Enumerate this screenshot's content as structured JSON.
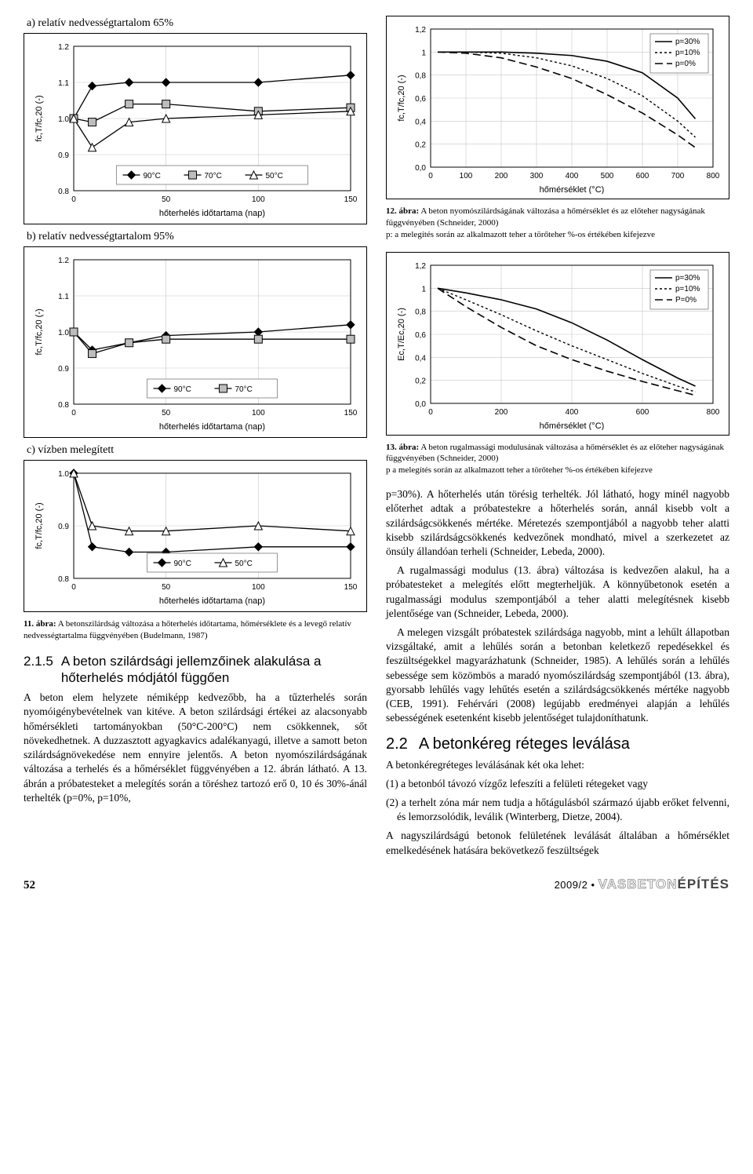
{
  "left": {
    "chart_a": {
      "title": "a) relatív nedvességtartalom 65%",
      "type": "line-marker",
      "x_label": "hőterhelés időtartama (nap)",
      "y_label": "fc,T/fc,20 (-)",
      "xlim": [
        0,
        150
      ],
      "xticks": [
        0,
        50,
        100,
        150
      ],
      "ylim": [
        0.8,
        1.2
      ],
      "yticks": [
        0.8,
        0.9,
        1.0,
        1.1,
        1.2
      ],
      "grid": true,
      "series": [
        {
          "name": "90°C",
          "marker": "diamond",
          "fill": "#000000",
          "x": [
            0,
            10,
            30,
            50,
            100,
            150
          ],
          "y": [
            1.0,
            1.09,
            1.1,
            1.1,
            1.1,
            1.12
          ]
        },
        {
          "name": "70°C",
          "marker": "square",
          "fill": "#bdbdbd",
          "x": [
            0,
            10,
            30,
            50,
            100,
            150
          ],
          "y": [
            1.0,
            0.99,
            1.04,
            1.04,
            1.02,
            1.03
          ]
        },
        {
          "name": "50°C",
          "marker": "triangle",
          "fill": "#ffffff",
          "x": [
            0,
            10,
            30,
            50,
            100,
            150
          ],
          "y": [
            1.0,
            0.92,
            0.99,
            1.0,
            1.01,
            1.02
          ]
        }
      ],
      "line_color": "#000000"
    },
    "chart_b": {
      "title": "b) relatív nedvességtartalom 95%",
      "type": "line-marker",
      "x_label": "hőterhelés időtartama (nap)",
      "y_label": "fc,T/fc,20 (-)",
      "xlim": [
        0,
        150
      ],
      "xticks": [
        0,
        50,
        100,
        150
      ],
      "ylim": [
        0.8,
        1.2
      ],
      "yticks": [
        0.8,
        0.9,
        1.0,
        1.1,
        1.2
      ],
      "grid": true,
      "series": [
        {
          "name": "90°C",
          "marker": "diamond",
          "fill": "#000000",
          "x": [
            0,
            10,
            30,
            50,
            100,
            150
          ],
          "y": [
            1.0,
            0.95,
            0.97,
            0.99,
            1.0,
            1.02
          ]
        },
        {
          "name": "70°C",
          "marker": "square",
          "fill": "#bdbdbd",
          "x": [
            0,
            10,
            30,
            50,
            100,
            150
          ],
          "y": [
            1.0,
            0.94,
            0.97,
            0.98,
            0.98,
            0.98
          ]
        }
      ],
      "line_color": "#000000"
    },
    "chart_c": {
      "title": "c) vízben melegített",
      "type": "line-marker",
      "x_label": "hőterhelés időtartama (nap)",
      "y_label": "fc,T/fc,20 (-)",
      "xlim": [
        0,
        150
      ],
      "xticks": [
        0,
        50,
        100,
        150
      ],
      "ylim": [
        0.8,
        1.0
      ],
      "yticks": [
        0.8,
        0.9,
        1.0
      ],
      "grid": true,
      "series": [
        {
          "name": "90°C",
          "marker": "diamond",
          "fill": "#000000",
          "x": [
            0,
            10,
            30,
            50,
            100,
            150
          ],
          "y": [
            1.0,
            0.86,
            0.85,
            0.85,
            0.86,
            0.86
          ]
        },
        {
          "name": "50°C",
          "marker": "triangle",
          "fill": "#ffffff",
          "x": [
            0,
            10,
            30,
            50,
            100,
            150
          ],
          "y": [
            1.0,
            0.9,
            0.89,
            0.89,
            0.9,
            0.89
          ]
        }
      ],
      "line_color": "#000000"
    },
    "caption11": {
      "lead": "11. ábra:",
      "text": "A betonszilárdság változása a hőterhelés időtartama, hőmérséklete és a levegő relatív nedvességtartalma függvényében (Budelmann, 1987)"
    },
    "section215": {
      "num": "2.1.5",
      "title": "A beton szilárdsági jellemzőinek alakulása a hőterhelés módjától függően",
      "para": "A beton elem helyzete némiképp kedvezőbb, ha a tűzterhelés során nyomóigénybevételnek van kitéve. A beton szilárdsági értékei az alacsonyabb hőmérsékleti tartományokban (50°C-200°C) nem csökkennek, sőt növekedhetnek. A duzzasztott agyagkavics adalékanyagú, illetve a samott beton szilárdságnövekedése nem ennyire jelentős. A beton nyomószilárdságának változása a terhelés és a hőmérséklet függvényében a 12. ábrán látható. A 13. ábrán a próbatesteket a melegítés során a töréshez tartozó erő 0, 10 és 30%-ánál terhelték (p=0%, p=10%,"
    }
  },
  "right": {
    "chart12": {
      "type": "line",
      "x_label": "hőmérséklet (°C)",
      "y_label": "fc,T/fc,20 (-)",
      "xlim": [
        0,
        800
      ],
      "xticks": [
        0,
        100,
        200,
        300,
        400,
        500,
        600,
        700,
        800
      ],
      "ylim": [
        0,
        1.2
      ],
      "yticks": [
        0,
        0.2,
        0.4,
        0.6,
        0.8,
        1.0,
        1.2
      ],
      "grid": true,
      "legend": [
        "p=30%",
        "p=10%",
        "p=0%"
      ],
      "styles": [
        {
          "dash": "",
          "width": 1.6
        },
        {
          "dash": "3,3",
          "width": 1.4
        },
        {
          "dash": "10,5",
          "width": 1.6
        }
      ],
      "line_color": "#000000",
      "series": [
        {
          "x": [
            20,
            100,
            200,
            300,
            400,
            500,
            600,
            700,
            750
          ],
          "y": [
            1.0,
            1.0,
            1.0,
            0.99,
            0.97,
            0.92,
            0.82,
            0.6,
            0.42
          ]
        },
        {
          "x": [
            20,
            100,
            200,
            300,
            400,
            500,
            600,
            700,
            750
          ],
          "y": [
            1.0,
            1.0,
            0.99,
            0.95,
            0.88,
            0.77,
            0.62,
            0.4,
            0.26
          ]
        },
        {
          "x": [
            20,
            100,
            200,
            300,
            400,
            500,
            600,
            700,
            750
          ],
          "y": [
            1.0,
            0.99,
            0.95,
            0.87,
            0.77,
            0.63,
            0.47,
            0.28,
            0.17
          ]
        }
      ]
    },
    "caption12": {
      "lead": "12. ábra:",
      "text": "A beton nyomószilárdságának változása a hőmérséklet és az előteher nagyságának függvényében (Schneider, 2000)\np: a melegítés során az alkalmazott teher a törőteher %-os értékében kifejezve"
    },
    "chart13": {
      "type": "line",
      "x_label": "hőmérséklet (°C)",
      "y_label": "Ec,T/Ec,20 (-)",
      "xlim": [
        0,
        800
      ],
      "xticks": [
        0,
        200,
        400,
        600,
        800
      ],
      "ylim": [
        0,
        1.2
      ],
      "yticks": [
        0.0,
        0.2,
        0.4,
        0.6,
        0.8,
        1.0,
        1.2
      ],
      "grid": true,
      "legend": [
        "p=30%",
        "p=10%",
        "P=0%"
      ],
      "styles": [
        {
          "dash": "",
          "width": 1.6
        },
        {
          "dash": "3,3",
          "width": 1.4
        },
        {
          "dash": "10,5",
          "width": 1.6
        }
      ],
      "line_color": "#000000",
      "series": [
        {
          "x": [
            20,
            100,
            200,
            300,
            400,
            500,
            600,
            700,
            750
          ],
          "y": [
            1.0,
            0.96,
            0.9,
            0.82,
            0.7,
            0.55,
            0.38,
            0.22,
            0.15
          ]
        },
        {
          "x": [
            20,
            100,
            200,
            300,
            400,
            500,
            600,
            700,
            750
          ],
          "y": [
            1.0,
            0.9,
            0.77,
            0.63,
            0.5,
            0.38,
            0.26,
            0.15,
            0.1
          ]
        },
        {
          "x": [
            20,
            100,
            200,
            300,
            400,
            500,
            600,
            700,
            750
          ],
          "y": [
            1.0,
            0.84,
            0.66,
            0.5,
            0.38,
            0.28,
            0.19,
            0.11,
            0.07
          ]
        }
      ]
    },
    "caption13": {
      "lead": "13. ábra:",
      "text": "A beton rugalmassági modulusának változása a hőmérséklet és az előteher nagyságának függvényében (Schneider, 2000)\np a melegítés során az alkalmazott teher a törőteher %-os értékében kifejezve"
    },
    "para1": "p=30%). A hőterhelés után törésig terhelték. Jól látható, hogy minél nagyobb előterhet adtak a próbatestekre a hőterhelés során, annál kisebb volt a szilárdságcsökkenés mértéke. Méretezés szempontjából a nagyobb teher alatti kisebb szilárdságcsökkenés kedvezőnek mondható, mivel a szerkezetet az önsúly állandóan terheli (Schneider, Lebeda, 2000).",
    "para2": "A rugalmassági modulus (13. ábra) változása is kedvezően alakul, ha a próbatesteket a melegítés előtt megterheljük. A könnyűbetonok esetén a rugalmassági modulus szempontjából a teher alatti melegítésnek kisebb jelentősége van (Schneider, Lebeda, 2000).",
    "para3": "A melegen vizsgált próbatestek szilárdsága nagyobb, mint a lehűlt állapotban vizsgáltaké, amit a lehűlés során a betonban keletkező repedésekkel és feszültségekkel magyarázhatunk (Schneider, 1985). A lehűlés során a lehűlés sebessége sem közömbös a maradó nyomószilárdság szempontjából (13. ábra), gyorsabb lehűlés vagy lehűtés esetén a szilárdságcsökkenés mértéke nagyobb (CEB, 1991). Fehérvári (2008) legújabb eredményei alapján a lehűlés sebességének esetenként kisebb jelentőséget tulajdoníthatunk.",
    "section22": {
      "num": "2.2",
      "title": "A betonkéreg réteges leválása",
      "p1": "A betonkéregréteges leválásának két oka lehet:",
      "li1": "(1) a betonból távozó vízgőz lefeszíti a felületi rétegeket vagy",
      "li2": "(2) a terhelt zóna már nem tudja a hőtágulásból származó újabb erőket felvenni, és lemorzsolódik, leválik (Winterberg, Dietze, 2004).",
      "p2": "A nagyszilárdságú betonok felületének leválását általában a hőmérséklet emelkedésének hatására bekövetkező feszültségek"
    }
  },
  "footer": {
    "page": "52",
    "issue": "2009/2  •",
    "mag1": "VASBETON",
    "mag2": "ÉPÍTÉS"
  }
}
